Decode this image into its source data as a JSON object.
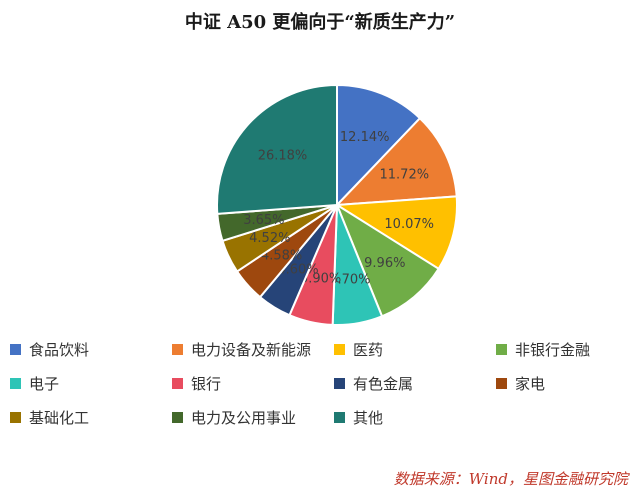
{
  "chart_data": {
    "type": "pie",
    "title": "中证 A50 更偏向于“新质生产力”",
    "start_angle_deg": 0,
    "direction": "clockwise",
    "legend_position": "bottom",
    "slices": [
      {
        "label": "食品饮料",
        "value": 12.14,
        "value_label": "12.14%",
        "color": "#4472C4"
      },
      {
        "label": "电力设备及新能源",
        "value": 11.72,
        "value_label": "11.72%",
        "color": "#ED7D31"
      },
      {
        "label": "医药",
        "value": 10.07,
        "value_label": "10.07%",
        "color": "#FFC000"
      },
      {
        "label": "非银行金融",
        "value": 9.96,
        "value_label": "9.96%",
        "color": "#70AD47"
      },
      {
        "label": "电子",
        "value": 6.7,
        "value_label": "6.70%",
        "color": "#2EC4B6"
      },
      {
        "label": "银行",
        "value": 5.9,
        "value_label": "5.90%",
        "color": "#E84C5F"
      },
      {
        "label": "有色金属",
        "value": 4.6,
        "value_label": "4.60%",
        "color": "#264478"
      },
      {
        "label": "家电",
        "value": 4.58,
        "value_label": "4.58%",
        "color": "#9E480E"
      },
      {
        "label": "基础化工",
        "value": 4.52,
        "value_label": "4.52%",
        "color": "#997300"
      },
      {
        "label": "电力及公用事业",
        "value": 3.65,
        "value_label": "3.65%",
        "color": "#43682B"
      },
      {
        "label": "其他",
        "value": 26.18,
        "value_label": "26.18%",
        "color": "#1F7A72"
      }
    ]
  },
  "source": "数据来源：Wind，星图金融研究院"
}
